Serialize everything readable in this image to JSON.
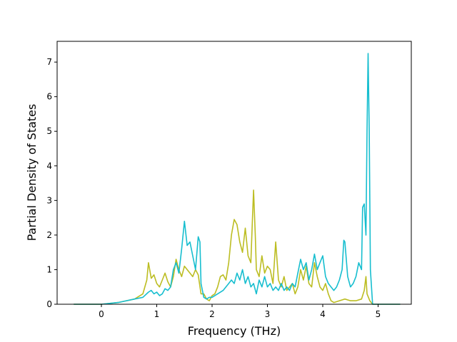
{
  "chart_data": {
    "type": "line",
    "title": "",
    "xlabel": "Frequency (THz)",
    "ylabel": "Partial Density of States",
    "xlim": [
      -0.8,
      5.6
    ],
    "ylim": [
      0,
      7.6
    ],
    "xticks": [
      0,
      1,
      2,
      3,
      4,
      5
    ],
    "yticks": [
      0,
      1,
      2,
      3,
      4,
      5,
      6,
      7
    ],
    "grid": false,
    "legend": "none",
    "series": [
      {
        "color": "#bcbd22",
        "points": [
          [
            -0.5,
            0.0
          ],
          [
            0.0,
            0.0
          ],
          [
            0.3,
            0.05
          ],
          [
            0.6,
            0.15
          ],
          [
            0.75,
            0.3
          ],
          [
            0.82,
            0.7
          ],
          [
            0.85,
            1.2
          ],
          [
            0.9,
            0.75
          ],
          [
            0.95,
            0.85
          ],
          [
            1.0,
            0.6
          ],
          [
            1.05,
            0.5
          ],
          [
            1.1,
            0.7
          ],
          [
            1.15,
            0.9
          ],
          [
            1.2,
            0.65
          ],
          [
            1.25,
            0.5
          ],
          [
            1.3,
            0.8
          ],
          [
            1.35,
            1.3
          ],
          [
            1.4,
            1.0
          ],
          [
            1.45,
            0.8
          ],
          [
            1.5,
            1.1
          ],
          [
            1.55,
            1.0
          ],
          [
            1.6,
            0.9
          ],
          [
            1.65,
            0.8
          ],
          [
            1.7,
            1.0
          ],
          [
            1.75,
            0.85
          ],
          [
            1.8,
            0.3
          ],
          [
            1.85,
            0.3
          ],
          [
            1.9,
            0.15
          ],
          [
            1.95,
            0.1
          ],
          [
            2.0,
            0.25
          ],
          [
            2.05,
            0.3
          ],
          [
            2.1,
            0.5
          ],
          [
            2.15,
            0.8
          ],
          [
            2.2,
            0.85
          ],
          [
            2.25,
            0.7
          ],
          [
            2.3,
            1.2
          ],
          [
            2.35,
            2.0
          ],
          [
            2.4,
            2.45
          ],
          [
            2.45,
            2.3
          ],
          [
            2.5,
            1.8
          ],
          [
            2.55,
            1.5
          ],
          [
            2.6,
            2.2
          ],
          [
            2.65,
            1.4
          ],
          [
            2.7,
            1.2
          ],
          [
            2.73,
            2.5
          ],
          [
            2.75,
            3.3
          ],
          [
            2.78,
            2.0
          ],
          [
            2.8,
            1.0
          ],
          [
            2.85,
            0.8
          ],
          [
            2.9,
            1.4
          ],
          [
            2.95,
            0.9
          ],
          [
            3.0,
            1.1
          ],
          [
            3.05,
            1.0
          ],
          [
            3.1,
            0.6
          ],
          [
            3.15,
            1.8
          ],
          [
            3.2,
            0.7
          ],
          [
            3.25,
            0.5
          ],
          [
            3.3,
            0.8
          ],
          [
            3.35,
            0.4
          ],
          [
            3.4,
            0.5
          ],
          [
            3.45,
            0.6
          ],
          [
            3.5,
            0.3
          ],
          [
            3.55,
            0.5
          ],
          [
            3.6,
            1.0
          ],
          [
            3.65,
            0.7
          ],
          [
            3.7,
            1.1
          ],
          [
            3.75,
            0.6
          ],
          [
            3.8,
            0.5
          ],
          [
            3.85,
            1.2
          ],
          [
            3.9,
            0.8
          ],
          [
            3.95,
            0.5
          ],
          [
            4.0,
            0.4
          ],
          [
            4.05,
            0.6
          ],
          [
            4.1,
            0.3
          ],
          [
            4.15,
            0.1
          ],
          [
            4.2,
            0.05
          ],
          [
            4.3,
            0.1
          ],
          [
            4.4,
            0.15
          ],
          [
            4.5,
            0.1
          ],
          [
            4.6,
            0.1
          ],
          [
            4.7,
            0.15
          ],
          [
            4.75,
            0.4
          ],
          [
            4.78,
            0.8
          ],
          [
            4.8,
            0.3
          ],
          [
            4.85,
            0.1
          ],
          [
            4.9,
            0.0
          ],
          [
            5.4,
            0.0
          ]
        ]
      },
      {
        "color": "#17becf",
        "points": [
          [
            -0.5,
            0.0
          ],
          [
            0.0,
            0.0
          ],
          [
            0.3,
            0.05
          ],
          [
            0.6,
            0.15
          ],
          [
            0.75,
            0.2
          ],
          [
            0.85,
            0.35
          ],
          [
            0.9,
            0.4
          ],
          [
            0.95,
            0.3
          ],
          [
            1.0,
            0.35
          ],
          [
            1.05,
            0.25
          ],
          [
            1.1,
            0.3
          ],
          [
            1.15,
            0.45
          ],
          [
            1.2,
            0.4
          ],
          [
            1.25,
            0.5
          ],
          [
            1.3,
            1.0
          ],
          [
            1.35,
            1.2
          ],
          [
            1.4,
            0.9
          ],
          [
            1.45,
            1.6
          ],
          [
            1.5,
            2.4
          ],
          [
            1.55,
            1.7
          ],
          [
            1.6,
            1.8
          ],
          [
            1.65,
            1.4
          ],
          [
            1.7,
            1.0
          ],
          [
            1.75,
            1.95
          ],
          [
            1.78,
            1.8
          ],
          [
            1.8,
            0.6
          ],
          [
            1.85,
            0.2
          ],
          [
            1.9,
            0.15
          ],
          [
            1.95,
            0.2
          ],
          [
            2.0,
            0.2
          ],
          [
            2.1,
            0.3
          ],
          [
            2.2,
            0.4
          ],
          [
            2.3,
            0.6
          ],
          [
            2.35,
            0.7
          ],
          [
            2.4,
            0.6
          ],
          [
            2.45,
            0.9
          ],
          [
            2.5,
            0.7
          ],
          [
            2.55,
            1.0
          ],
          [
            2.6,
            0.6
          ],
          [
            2.65,
            0.8
          ],
          [
            2.7,
            0.5
          ],
          [
            2.75,
            0.6
          ],
          [
            2.8,
            0.3
          ],
          [
            2.85,
            0.7
          ],
          [
            2.9,
            0.5
          ],
          [
            2.95,
            0.8
          ],
          [
            3.0,
            0.5
          ],
          [
            3.05,
            0.6
          ],
          [
            3.1,
            0.4
          ],
          [
            3.15,
            0.5
          ],
          [
            3.2,
            0.4
          ],
          [
            3.25,
            0.6
          ],
          [
            3.3,
            0.4
          ],
          [
            3.35,
            0.5
          ],
          [
            3.4,
            0.4
          ],
          [
            3.45,
            0.6
          ],
          [
            3.5,
            0.5
          ],
          [
            3.55,
            0.9
          ],
          [
            3.6,
            1.3
          ],
          [
            3.65,
            1.0
          ],
          [
            3.7,
            1.2
          ],
          [
            3.75,
            0.7
          ],
          [
            3.8,
            1.0
          ],
          [
            3.85,
            1.45
          ],
          [
            3.9,
            1.0
          ],
          [
            3.95,
            1.2
          ],
          [
            4.0,
            1.4
          ],
          [
            4.05,
            0.8
          ],
          [
            4.1,
            0.6
          ],
          [
            4.15,
            0.5
          ],
          [
            4.2,
            0.4
          ],
          [
            4.25,
            0.5
          ],
          [
            4.3,
            0.7
          ],
          [
            4.35,
            1.0
          ],
          [
            4.38,
            1.85
          ],
          [
            4.4,
            1.8
          ],
          [
            4.45,
            0.8
          ],
          [
            4.5,
            0.5
          ],
          [
            4.55,
            0.6
          ],
          [
            4.6,
            0.8
          ],
          [
            4.65,
            1.2
          ],
          [
            4.7,
            1.0
          ],
          [
            4.72,
            2.8
          ],
          [
            4.75,
            2.9
          ],
          [
            4.78,
            2.0
          ],
          [
            4.8,
            5.0
          ],
          [
            4.82,
            7.25
          ],
          [
            4.84,
            5.0
          ],
          [
            4.86,
            1.0
          ],
          [
            4.9,
            0.0
          ],
          [
            5.4,
            0.0
          ]
        ]
      }
    ]
  }
}
